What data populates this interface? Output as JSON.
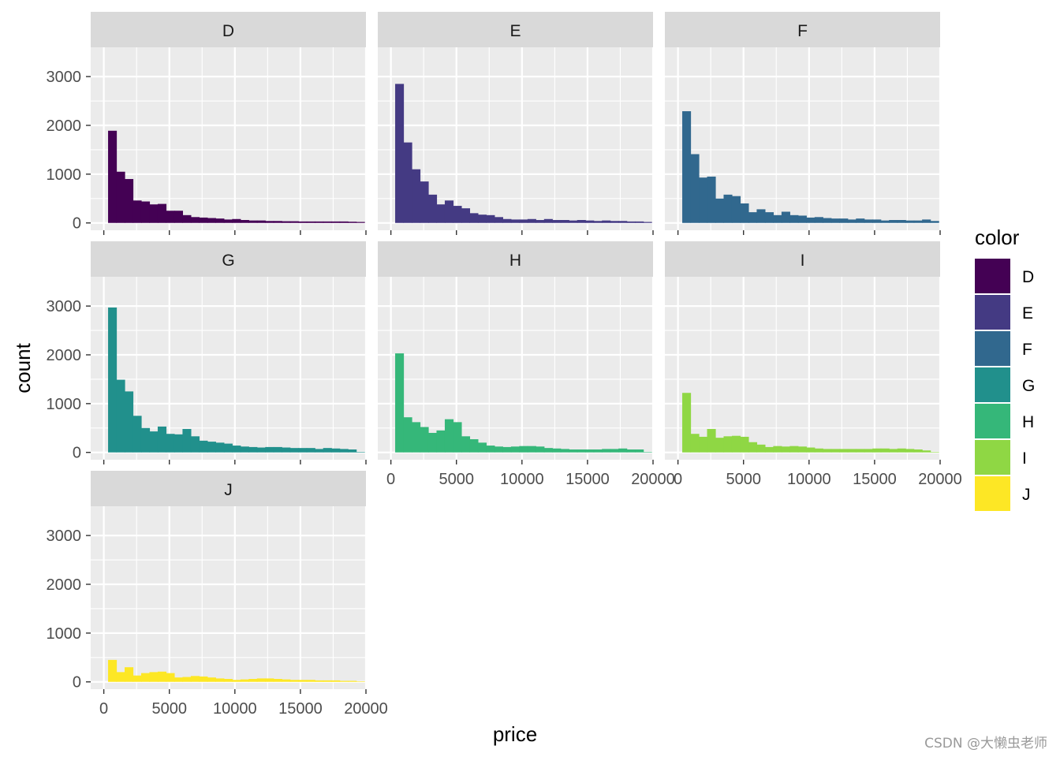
{
  "chart_data": {
    "type": "bar",
    "title": "",
    "xlabel": "price",
    "ylabel": "count",
    "xlim": [
      -1000,
      20000
    ],
    "ylim": [
      -150,
      3600
    ],
    "x_ticks": [
      0,
      5000,
      10000,
      15000,
      20000
    ],
    "x_tick_labels": [
      "0",
      "5000",
      "10000",
      "15000",
      "20000"
    ],
    "y_ticks": [
      0,
      1000,
      2000,
      3000
    ],
    "y_tick_labels": [
      "0",
      "1000",
      "2000",
      "3000"
    ],
    "grid": true,
    "legend": {
      "title": "color",
      "position": "right",
      "entries": [
        "D",
        "E",
        "F",
        "G",
        "H",
        "I",
        "J"
      ]
    },
    "bin_width": 631,
    "bin_start": 326,
    "series": [
      {
        "name": "D",
        "color": "#440154",
        "values": [
          1890,
          1050,
          900,
          460,
          440,
          380,
          390,
          250,
          250,
          160,
          120,
          110,
          100,
          90,
          70,
          80,
          60,
          50,
          50,
          40,
          40,
          35,
          35,
          30,
          30,
          30,
          30,
          30,
          30,
          25,
          20
        ]
      },
      {
        "name": "E",
        "color": "#443A83",
        "values": [
          2850,
          1650,
          1100,
          850,
          580,
          380,
          460,
          350,
          300,
          200,
          170,
          160,
          120,
          80,
          70,
          70,
          80,
          60,
          80,
          60,
          60,
          50,
          60,
          50,
          40,
          50,
          40,
          40,
          30,
          30,
          20
        ]
      },
      {
        "name": "F",
        "color": "#31688E",
        "values": [
          2290,
          1410,
          930,
          950,
          500,
          580,
          550,
          400,
          220,
          280,
          220,
          160,
          230,
          160,
          150,
          110,
          120,
          100,
          90,
          90,
          70,
          90,
          70,
          70,
          50,
          60,
          60,
          50,
          50,
          70,
          40
        ]
      },
      {
        "name": "G",
        "color": "#21908C",
        "values": [
          2970,
          1490,
          1250,
          750,
          500,
          430,
          530,
          380,
          370,
          480,
          330,
          240,
          220,
          200,
          180,
          140,
          120,
          110,
          100,
          110,
          110,
          100,
          90,
          90,
          90,
          70,
          90,
          80,
          70,
          60,
          10
        ]
      },
      {
        "name": "H",
        "color": "#35B779",
        "values": [
          2030,
          720,
          620,
          520,
          400,
          450,
          680,
          620,
          330,
          270,
          200,
          140,
          120,
          110,
          120,
          130,
          130,
          120,
          90,
          80,
          70,
          60,
          60,
          60,
          60,
          70,
          70,
          80,
          60,
          60,
          10
        ]
      },
      {
        "name": "I",
        "color": "#8FD744",
        "values": [
          1220,
          380,
          320,
          480,
          300,
          330,
          340,
          320,
          210,
          160,
          110,
          130,
          120,
          130,
          120,
          100,
          80,
          70,
          70,
          70,
          70,
          70,
          70,
          80,
          80,
          70,
          80,
          70,
          60,
          40,
          10
        ]
      },
      {
        "name": "J",
        "color": "#FDE725",
        "values": [
          450,
          200,
          300,
          130,
          180,
          200,
          210,
          180,
          90,
          100,
          120,
          110,
          90,
          70,
          60,
          40,
          50,
          60,
          70,
          70,
          60,
          50,
          40,
          40,
          40,
          30,
          30,
          30,
          20,
          20,
          10
        ]
      }
    ]
  },
  "watermark": "CSDN @大懒虫老师"
}
